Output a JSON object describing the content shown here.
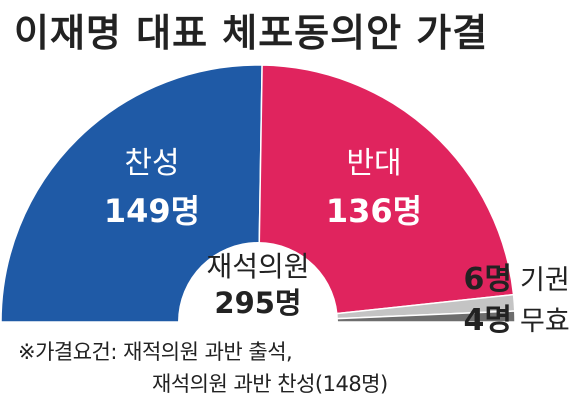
{
  "title": "이재명 대표 체포동의안 가결",
  "chart_data": {
    "type": "pie",
    "subtype": "semicircle",
    "center_label": "재석의원",
    "center_value": "295명",
    "total": 295,
    "slices": [
      {
        "label": "찬성",
        "value": 149,
        "value_label": "149명",
        "color": "#1f5aa6"
      },
      {
        "label": "반대",
        "value": 136,
        "value_label": "136명",
        "color": "#e0245e"
      },
      {
        "label": "기권",
        "value": 6,
        "value_label": "6명",
        "color": "#c4c4c4"
      },
      {
        "label": "무효",
        "value": 4,
        "value_label": "4명",
        "color": "#6d6d6d"
      }
    ]
  },
  "note": {
    "line1": "※가결요건: 재적의원 과반 출석,",
    "line2": "재석의원 과반 찬성(148명)"
  }
}
